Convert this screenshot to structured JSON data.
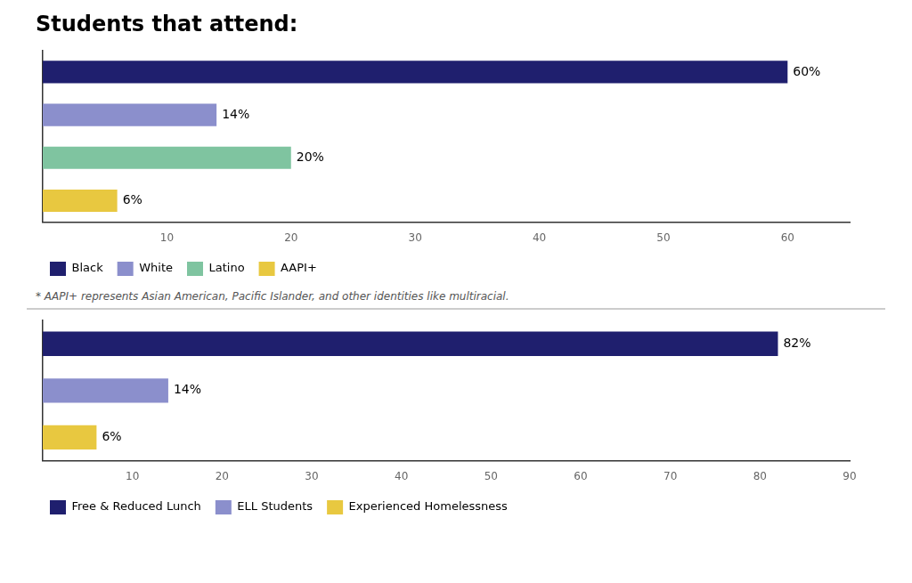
{
  "chart_data": [
    {
      "type": "bar",
      "orientation": "horizontal",
      "title": "Students that attend:",
      "categories": [
        "Black",
        "White",
        "Latino",
        "AAPI+"
      ],
      "values": [
        60,
        14,
        20,
        6
      ],
      "value_labels": [
        "60%",
        "14%",
        "20%",
        "6%"
      ],
      "colors": [
        "#1f1f6e",
        "#8b8fcc",
        "#7fc4a0",
        "#e8c840"
      ],
      "xlim": [
        0,
        65
      ],
      "xticks": [
        10,
        20,
        30,
        40,
        50,
        60
      ],
      "grid": false,
      "legend": "bottom",
      "data_labels": true,
      "tick_labels": "x",
      "annotations": [
        "* AAPI+ represents Asian American, Pacific Islander, and other identities like multiracial."
      ]
    },
    {
      "type": "bar",
      "orientation": "horizontal",
      "categories": [
        "Free & Reduced Lunch",
        "ELL Students",
        "Experienced Homelessness"
      ],
      "values": [
        82,
        14,
        6
      ],
      "value_labels": [
        "82%",
        "14%",
        "6%"
      ],
      "colors": [
        "#1f1f6e",
        "#8b8fcc",
        "#e8c840"
      ],
      "xlim": [
        0,
        90
      ],
      "xticks": [
        10,
        20,
        30,
        40,
        50,
        60,
        70,
        80,
        90
      ],
      "grid": false,
      "legend": "bottom",
      "data_labels": true,
      "tick_labels": "x"
    }
  ]
}
